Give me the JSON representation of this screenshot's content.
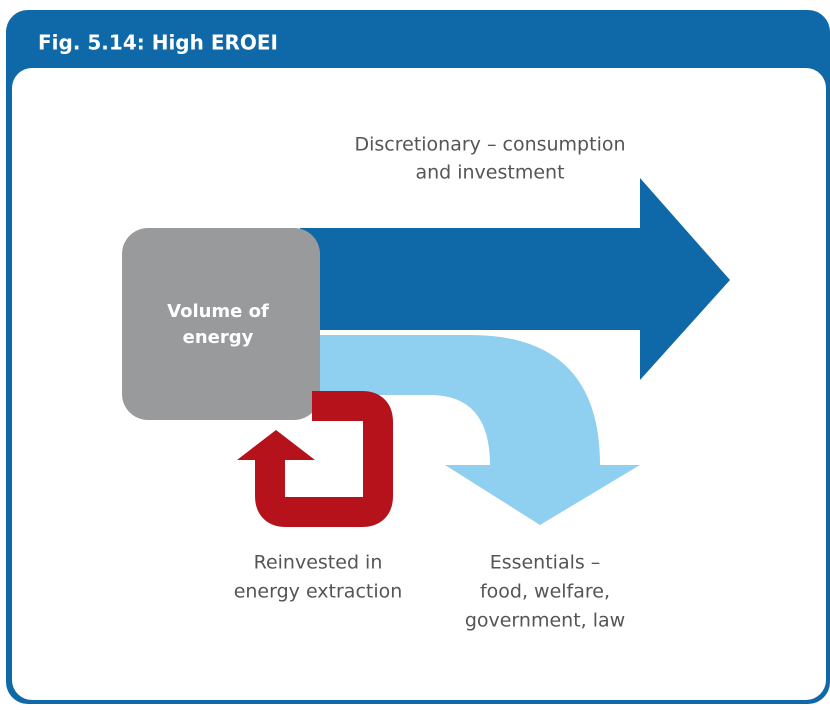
{
  "header": {
    "title": "Fig. 5.14: High EROEI"
  },
  "nodes": [
    {
      "label": [
        "Volume of",
        "energy"
      ]
    },
    {
      "label": [
        "Discretionary – consumption",
        "and investment"
      ]
    },
    {
      "label": [
        "Reinvested in",
        "energy extraction"
      ]
    },
    {
      "label": [
        "Essentials –",
        "food, welfare,",
        "government, law"
      ]
    }
  ]
}
